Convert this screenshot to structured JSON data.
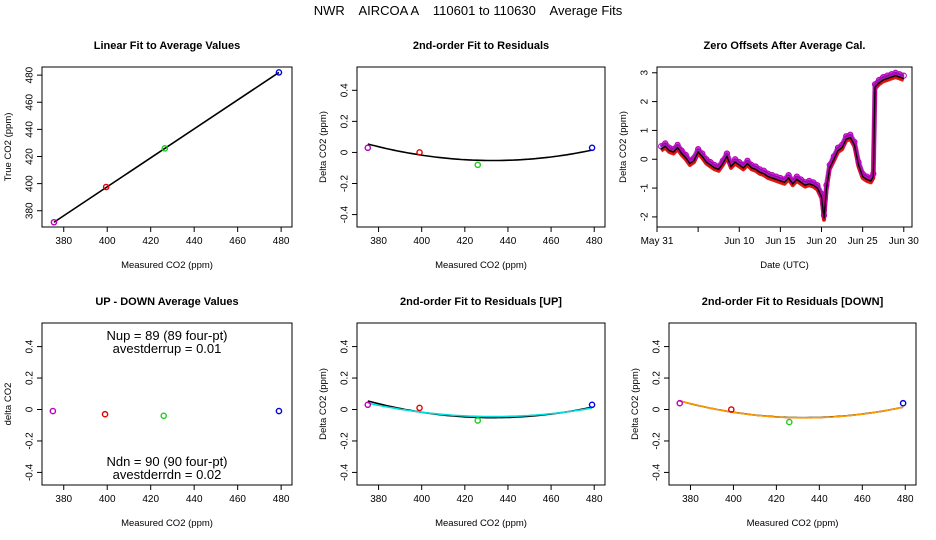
{
  "title": "NWR    AIRCOA A    110601 to 110630    Average Fits",
  "colors": {
    "red": "#e00000",
    "green": "#22cc22",
    "blue": "#0000dd",
    "purple": "#bb00bb",
    "black": "#000000",
    "cyan": "#00dddd",
    "orange": "#ff9900"
  },
  "chart_data": [
    {
      "id": "p1",
      "type": "scatter",
      "title": "Linear Fit to Average Values",
      "xlabel": "Measured CO2 (ppm)",
      "ylabel": "True CO2 (ppm)",
      "xlim": [
        370,
        485
      ],
      "ylim": [
        368,
        486
      ],
      "xticks": [
        380,
        400,
        420,
        440,
        460,
        480
      ],
      "yticks": [
        380,
        400,
        420,
        440,
        460,
        480
      ],
      "points": [
        {
          "x": 375.5,
          "y": 371.5,
          "color": "purple"
        },
        {
          "x": 399.5,
          "y": 397.5,
          "color": "red"
        },
        {
          "x": 426.5,
          "y": 426.0,
          "color": "green"
        },
        {
          "x": 479.0,
          "y": 482.0,
          "color": "blue"
        }
      ],
      "fit": {
        "kind": "linear",
        "from": [
          375.5,
          371.5
        ],
        "to": [
          479.0,
          482.0
        ],
        "color": "black"
      }
    },
    {
      "id": "p2",
      "type": "scatter",
      "title": "2nd-order Fit to Residuals",
      "xlabel": "Measured CO2 (ppm)",
      "ylabel": "Delta CO2 (ppm)",
      "xlim": [
        370,
        485
      ],
      "ylim": [
        -0.48,
        0.55
      ],
      "xticks": [
        380,
        400,
        420,
        440,
        460,
        480
      ],
      "yticks": [
        -0.4,
        -0.2,
        0.0,
        0.2,
        0.4
      ],
      "points": [
        {
          "x": 375,
          "y": 0.03,
          "color": "purple"
        },
        {
          "x": 399,
          "y": 0.0,
          "color": "red"
        },
        {
          "x": 426,
          "y": -0.08,
          "color": "green"
        },
        {
          "x": 479,
          "y": 0.03,
          "color": "blue"
        }
      ],
      "curves": [
        {
          "coef": [
            -0.052,
            0.0,
            3.16e-05
          ],
          "center": 433,
          "from": 375,
          "to": 479,
          "color": "black"
        }
      ]
    },
    {
      "id": "p3",
      "type": "line",
      "title": "Zero Offsets After Average Cal.",
      "xlabel": "Date (UTC)",
      "ylabel": "Delta CO2 (ppm)",
      "xlim": [
        0,
        31
      ],
      "ylim": [
        -2.35,
        3.2
      ],
      "xticks": [
        {
          "v": 0,
          "label": "May 31"
        },
        {
          "v": 5,
          "label": ""
        },
        {
          "v": 10,
          "label": "Jun 10"
        },
        {
          "v": 15,
          "label": "Jun 15"
        },
        {
          "v": 20,
          "label": "Jun 20"
        },
        {
          "v": 25,
          "label": "Jun 25"
        },
        {
          "v": 30,
          "label": "Jun 30"
        }
      ],
      "yticks": [
        -2,
        -1,
        0,
        1,
        2,
        3
      ],
      "series_colors": [
        "blue",
        "green",
        "red",
        "purple"
      ],
      "trace": [
        [
          0.5,
          0.35
        ],
        [
          1.0,
          0.45
        ],
        [
          1.5,
          0.3
        ],
        [
          2.0,
          0.25
        ],
        [
          2.5,
          0.4
        ],
        [
          3.0,
          0.2
        ],
        [
          3.5,
          0.05
        ],
        [
          4.0,
          -0.15
        ],
        [
          4.5,
          -0.05
        ],
        [
          5.0,
          0.25
        ],
        [
          5.5,
          0.1
        ],
        [
          6.0,
          -0.1
        ],
        [
          6.5,
          -0.2
        ],
        [
          7.0,
          -0.3
        ],
        [
          7.5,
          -0.35
        ],
        [
          8.0,
          -0.15
        ],
        [
          8.5,
          0.1
        ],
        [
          9.0,
          -0.25
        ],
        [
          9.5,
          -0.1
        ],
        [
          10.0,
          -0.2
        ],
        [
          10.5,
          -0.3
        ],
        [
          11.0,
          -0.15
        ],
        [
          11.5,
          -0.3
        ],
        [
          12.0,
          -0.35
        ],
        [
          12.5,
          -0.45
        ],
        [
          13.0,
          -0.5
        ],
        [
          13.5,
          -0.6
        ],
        [
          14.0,
          -0.65
        ],
        [
          14.5,
          -0.7
        ],
        [
          15.0,
          -0.75
        ],
        [
          15.5,
          -0.8
        ],
        [
          16.0,
          -0.65
        ],
        [
          16.5,
          -0.85
        ],
        [
          17.0,
          -0.7
        ],
        [
          17.5,
          -0.8
        ],
        [
          18.0,
          -0.9
        ],
        [
          18.5,
          -0.85
        ],
        [
          19.0,
          -0.9
        ],
        [
          19.5,
          -1.0
        ],
        [
          20.0,
          -1.3
        ],
        [
          20.3,
          -2.05
        ],
        [
          20.6,
          -1.0
        ],
        [
          21.0,
          -0.3
        ],
        [
          21.5,
          0.0
        ],
        [
          22.0,
          0.3
        ],
        [
          22.5,
          0.4
        ],
        [
          23.0,
          0.7
        ],
        [
          23.5,
          0.75
        ],
        [
          24.0,
          0.5
        ],
        [
          24.5,
          -0.2
        ],
        [
          25.0,
          -0.6
        ],
        [
          25.5,
          -0.7
        ],
        [
          26.0,
          -0.75
        ],
        [
          26.3,
          -0.6
        ],
        [
          26.5,
          2.5
        ],
        [
          27.0,
          2.65
        ],
        [
          27.5,
          2.75
        ],
        [
          28.0,
          2.8
        ],
        [
          28.5,
          2.85
        ],
        [
          29.0,
          2.9
        ],
        [
          29.5,
          2.85
        ],
        [
          30.0,
          2.8
        ]
      ]
    },
    {
      "id": "p4",
      "type": "scatter",
      "title": "UP - DOWN Average Values",
      "xlabel": "Measured CO2 (ppm)",
      "ylabel": "delta CO2",
      "xlim": [
        370,
        485
      ],
      "ylim": [
        -0.48,
        0.55
      ],
      "xticks": [
        380,
        400,
        420,
        440,
        460,
        480
      ],
      "yticks": [
        -0.4,
        -0.2,
        0.0,
        0.2,
        0.4
      ],
      "points": [
        {
          "x": 375,
          "y": -0.01,
          "color": "purple"
        },
        {
          "x": 399,
          "y": -0.03,
          "color": "red"
        },
        {
          "x": 426,
          "y": -0.04,
          "color": "green"
        },
        {
          "x": 479,
          "y": -0.01,
          "color": "blue"
        }
      ],
      "annotations": {
        "nup": "Nup = 89 (89 four-pt)",
        "avestderrup": "avestderrup =  0.01",
        "ndn": "Ndn = 90 (90 four-pt)",
        "avestderrdn": "avestderrdn =  0.02"
      }
    },
    {
      "id": "p5",
      "type": "scatter",
      "title": "2nd-order Fit to Residuals [UP]",
      "xlabel": "Measured CO2 (ppm)",
      "ylabel": "Delta CO2 (ppm)",
      "xlim": [
        370,
        485
      ],
      "ylim": [
        -0.48,
        0.55
      ],
      "xticks": [
        380,
        400,
        420,
        440,
        460,
        480
      ],
      "yticks": [
        -0.4,
        -0.2,
        0.0,
        0.2,
        0.4
      ],
      "points": [
        {
          "x": 375,
          "y": 0.03,
          "color": "purple"
        },
        {
          "x": 399,
          "y": 0.01,
          "color": "red"
        },
        {
          "x": 426,
          "y": -0.07,
          "color": "green"
        },
        {
          "x": 479,
          "y": 0.03,
          "color": "blue"
        }
      ],
      "curves": [
        {
          "coef": [
            -0.052,
            0.0,
            3.16e-05
          ],
          "center": 433,
          "from": 375,
          "to": 479,
          "color": "black"
        },
        {
          "coef": [
            -0.045,
            0.0,
            2.55e-05
          ],
          "center": 433,
          "from": 375,
          "to": 479,
          "color": "cyan"
        }
      ]
    },
    {
      "id": "p6",
      "type": "scatter",
      "title": "2nd-order Fit to Residuals [DOWN]",
      "xlabel": "Measured CO2 (ppm)",
      "ylabel": "Delta CO2 (ppm)",
      "xlim": [
        370,
        485
      ],
      "ylim": [
        -0.48,
        0.55
      ],
      "xticks": [
        380,
        400,
        420,
        440,
        460,
        480
      ],
      "yticks": [
        -0.4,
        -0.2,
        0.0,
        0.2,
        0.4
      ],
      "points": [
        {
          "x": 375,
          "y": 0.04,
          "color": "purple"
        },
        {
          "x": 399,
          "y": 0.0,
          "color": "red"
        },
        {
          "x": 426,
          "y": -0.08,
          "color": "green"
        },
        {
          "x": 479,
          "y": 0.04,
          "color": "blue"
        }
      ],
      "curves": [
        {
          "coef": [
            -0.052,
            0.0,
            3.16e-05
          ],
          "center": 433,
          "from": 375,
          "to": 479,
          "color": "black"
        },
        {
          "coef": [
            -0.053,
            0.0,
            3.22e-05
          ],
          "center": 433,
          "from": 375,
          "to": 479,
          "color": "orange"
        }
      ]
    }
  ]
}
